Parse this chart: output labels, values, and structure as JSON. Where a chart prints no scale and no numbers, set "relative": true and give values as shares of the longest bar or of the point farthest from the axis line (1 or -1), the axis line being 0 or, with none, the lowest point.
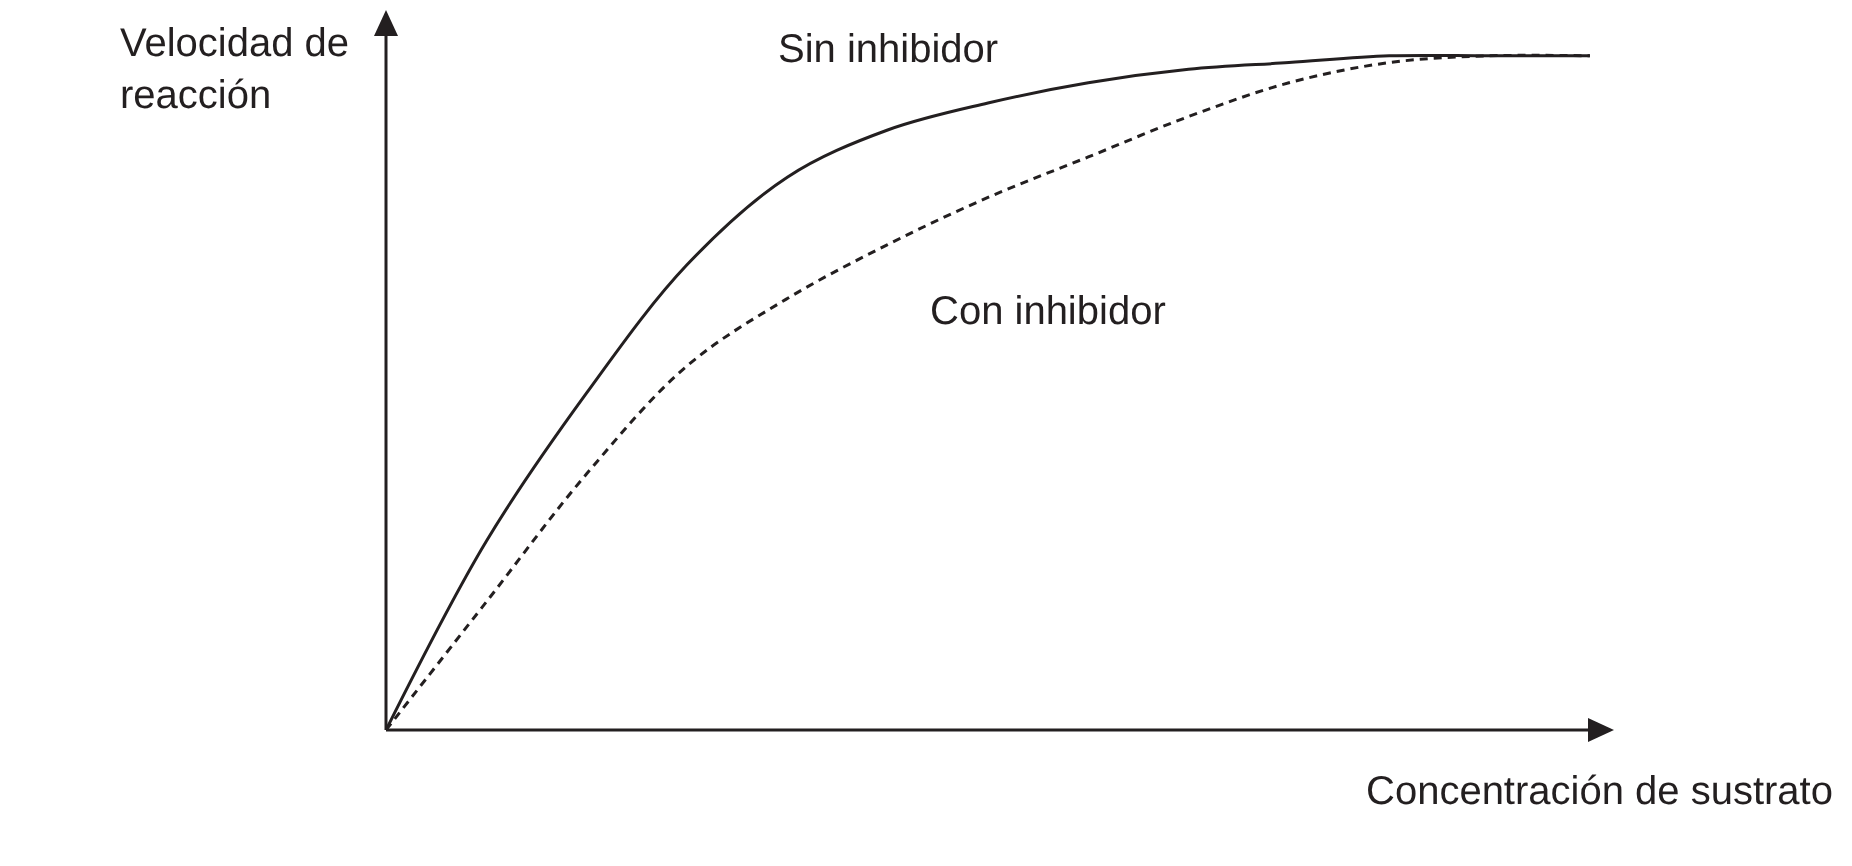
{
  "chart_data": {
    "type": "line",
    "relative": true,
    "xlabel": "Concentración de sustrato",
    "ylabel": "Velocidad de reacción",
    "categories": [
      null,
      null,
      null,
      null,
      null,
      null,
      null,
      null,
      null,
      null,
      null,
      null,
      null
    ],
    "legend": false,
    "marker": "none",
    "series": [
      {
        "name": "Sin inhibidor",
        "color": "#231f20",
        "line_style": "solid",
        "values": [
          0,
          0.28,
          0.5,
          0.69,
          0.82,
          0.89,
          0.93,
          0.96,
          0.98,
          0.99,
          1.0,
          1.0,
          1.0
        ]
      },
      {
        "name": "Con inhibidor",
        "color": "#231f20",
        "line_style": "dashed",
        "values": [
          0,
          0.19,
          0.38,
          0.54,
          0.64,
          0.72,
          0.79,
          0.85,
          0.91,
          0.96,
          0.99,
          1.0,
          1.0
        ]
      }
    ]
  }
}
